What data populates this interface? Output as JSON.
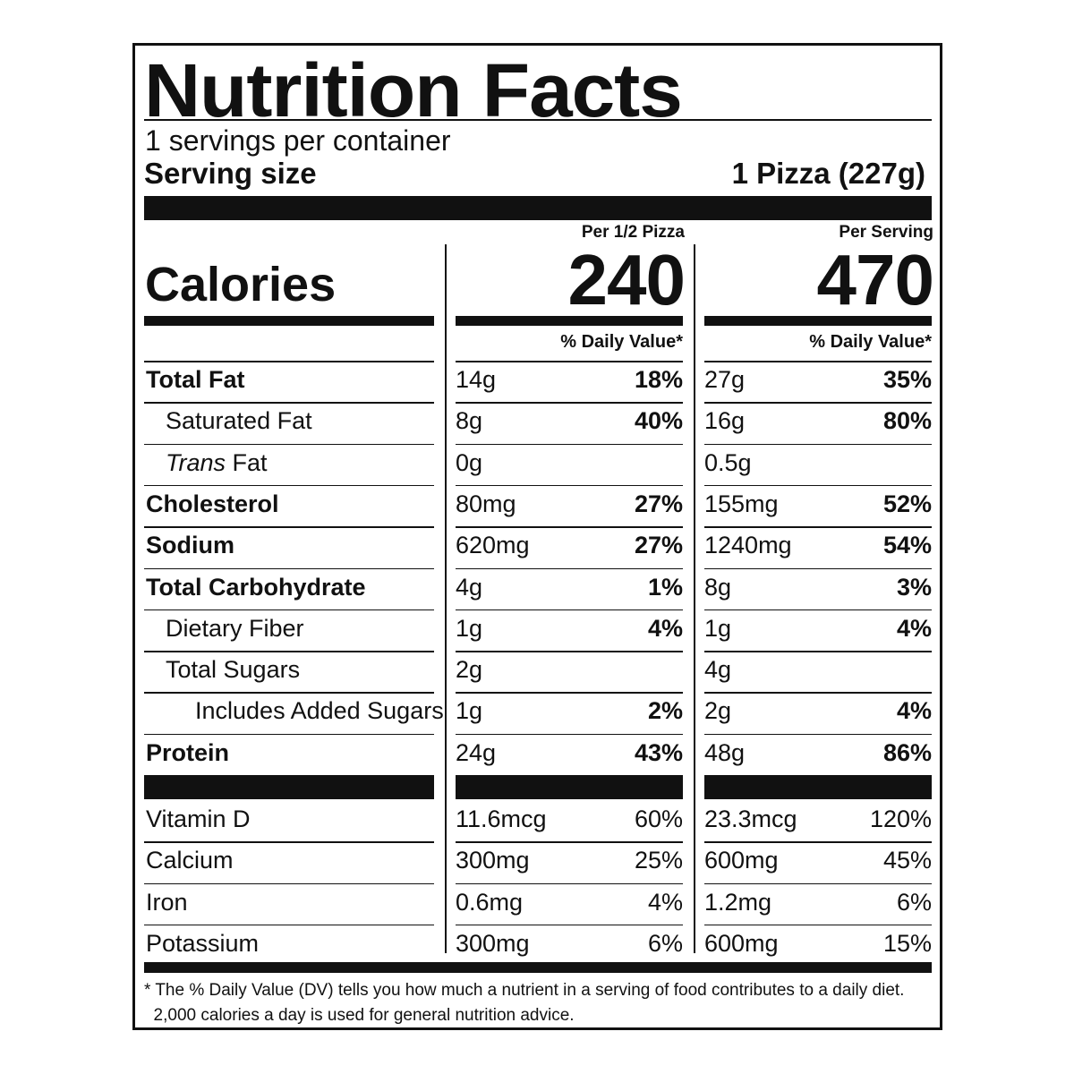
{
  "title": "Nutrition Facts",
  "servings_per_container": "1 servings per container",
  "serving_size_label": "Serving size",
  "serving_size_value": "1 Pizza (227g)",
  "columns": [
    {
      "heading": "Per 1/2 Pizza",
      "calories": "240",
      "dv_heading": "% Daily Value*"
    },
    {
      "heading": "Per Serving",
      "calories": "470",
      "dv_heading": "% Daily Value*"
    }
  ],
  "calories_label": "Calories",
  "nutrients": [
    {
      "name": "Total Fat",
      "bold": true,
      "indent": 0,
      "values": [
        {
          "amount": "14g",
          "dv": "18%"
        },
        {
          "amount": "27g",
          "dv": "35%"
        }
      ]
    },
    {
      "name": "Saturated Fat",
      "bold": false,
      "indent": 1,
      "values": [
        {
          "amount": "8g",
          "dv": "40%"
        },
        {
          "amount": "16g",
          "dv": "80%"
        }
      ]
    },
    {
      "name_italic": "Trans",
      "name": " Fat",
      "bold": false,
      "indent": 1,
      "values": [
        {
          "amount": "0g",
          "dv": ""
        },
        {
          "amount": "0.5g",
          "dv": ""
        }
      ]
    },
    {
      "name": "Cholesterol",
      "bold": true,
      "indent": 0,
      "values": [
        {
          "amount": "80mg",
          "dv": "27%"
        },
        {
          "amount": "155mg",
          "dv": "52%"
        }
      ]
    },
    {
      "name": "Sodium",
      "bold": true,
      "indent": 0,
      "values": [
        {
          "amount": "620mg",
          "dv": "27%"
        },
        {
          "amount": "1240mg",
          "dv": "54%"
        }
      ]
    },
    {
      "name": "Total Carbohydrate",
      "bold": true,
      "indent": 0,
      "values": [
        {
          "amount": "4g",
          "dv": "1%"
        },
        {
          "amount": "8g",
          "dv": "3%"
        }
      ]
    },
    {
      "name": "Dietary Fiber",
      "bold": false,
      "indent": 1,
      "values": [
        {
          "amount": "1g",
          "dv": "4%"
        },
        {
          "amount": "1g",
          "dv": "4%"
        }
      ]
    },
    {
      "name": "Total Sugars",
      "bold": false,
      "indent": 1,
      "values": [
        {
          "amount": "2g",
          "dv": ""
        },
        {
          "amount": "4g",
          "dv": ""
        }
      ]
    },
    {
      "name": "Includes Added Sugars",
      "bold": false,
      "indent": 2,
      "values": [
        {
          "amount": "1g",
          "dv": "2%"
        },
        {
          "amount": "2g",
          "dv": "4%"
        }
      ]
    },
    {
      "name": "Protein",
      "bold": true,
      "indent": 0,
      "values": [
        {
          "amount": "24g",
          "dv": "43%"
        },
        {
          "amount": "48g",
          "dv": "86%"
        }
      ]
    }
  ],
  "vitamins": [
    {
      "name": "Vitamin D",
      "values": [
        {
          "amount": "11.6mcg",
          "dv": "60%"
        },
        {
          "amount": "23.3mcg",
          "dv": "120%"
        }
      ]
    },
    {
      "name": "Calcium",
      "values": [
        {
          "amount": "300mg",
          "dv": "25%"
        },
        {
          "amount": "600mg",
          "dv": "45%"
        }
      ]
    },
    {
      "name": "Iron",
      "values": [
        {
          "amount": "0.6mg",
          "dv": "4%"
        },
        {
          "amount": "1.2mg",
          "dv": "6%"
        }
      ]
    },
    {
      "name": "Potassium",
      "values": [
        {
          "amount": "300mg",
          "dv": "6%"
        },
        {
          "amount": "600mg",
          "dv": "15%"
        }
      ]
    }
  ],
  "footnote_line1": "* The % Daily Value (DV) tells you how much a nutrient in a serving of food contributes to a daily diet.",
  "footnote_line2": "  2,000 calories a day is used for general nutrition advice."
}
